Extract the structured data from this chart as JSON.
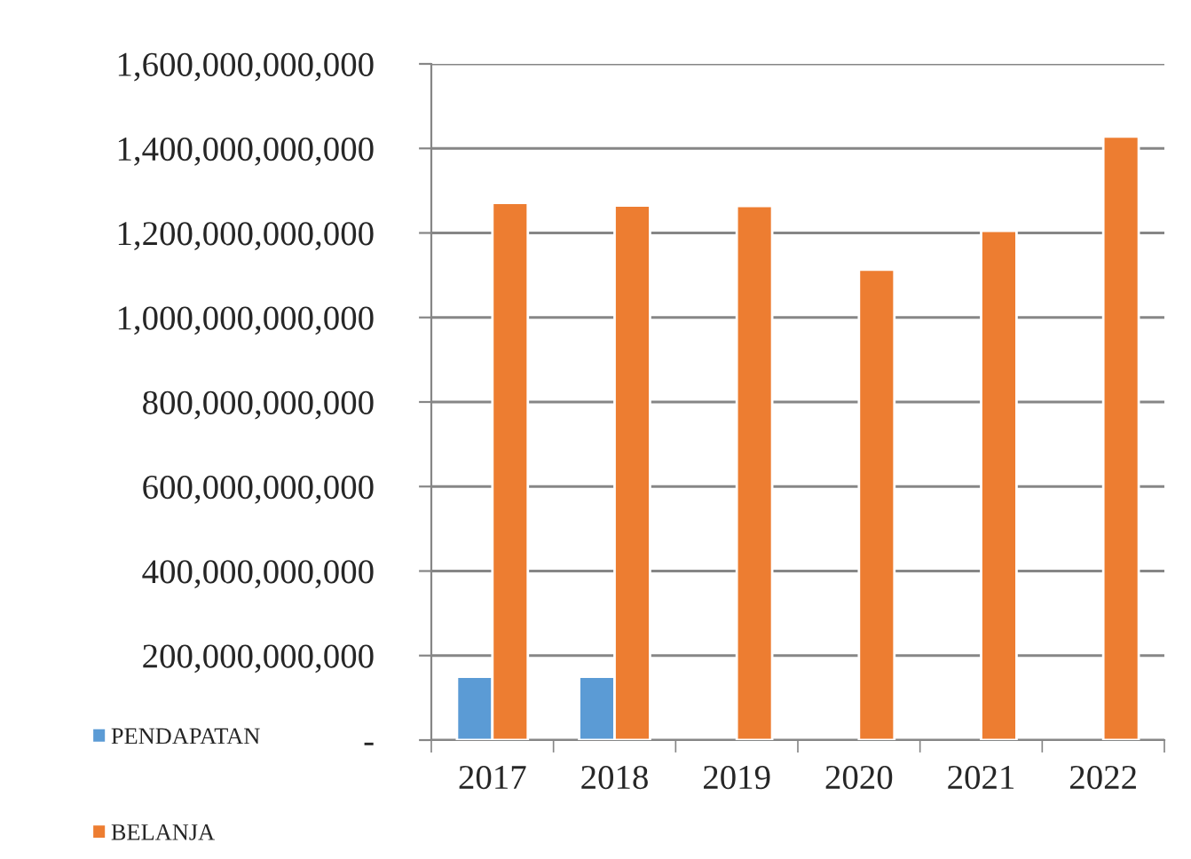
{
  "chart_data": {
    "type": "bar",
    "categories": [
      "2017",
      "2018",
      "2019",
      "2020",
      "2021",
      "2022"
    ],
    "series": [
      {
        "name": "PENDAPATAN",
        "color": "#5b9bd5",
        "values": [
          150000000000,
          150000000000,
          null,
          null,
          null,
          null
        ]
      },
      {
        "name": "BELANJA",
        "color": "#ed7d31",
        "values": [
          1271000000000,
          1265000000000,
          1264000000000,
          1113000000000,
          1205000000000,
          1428000000000
        ]
      }
    ],
    "ylim": [
      0,
      1600000000000
    ],
    "yticks": [
      {
        "value": 0,
        "label": "-"
      },
      {
        "value": 200000000000,
        "label": "200,000,000,000"
      },
      {
        "value": 400000000000,
        "label": "400,000,000,000"
      },
      {
        "value": 600000000000,
        "label": "600,000,000,000"
      },
      {
        "value": 800000000000,
        "label": "800,000,000,000"
      },
      {
        "value": 1000000000000,
        "label": "1,000,000,000,000"
      },
      {
        "value": 1200000000000,
        "label": "1,200,000,000,000"
      },
      {
        "value": 1400000000000,
        "label": "1,400,000,000,000"
      },
      {
        "value": 1600000000000,
        "label": "1,600,000,000,000"
      }
    ],
    "grid": "y",
    "legend": "bottom left"
  }
}
